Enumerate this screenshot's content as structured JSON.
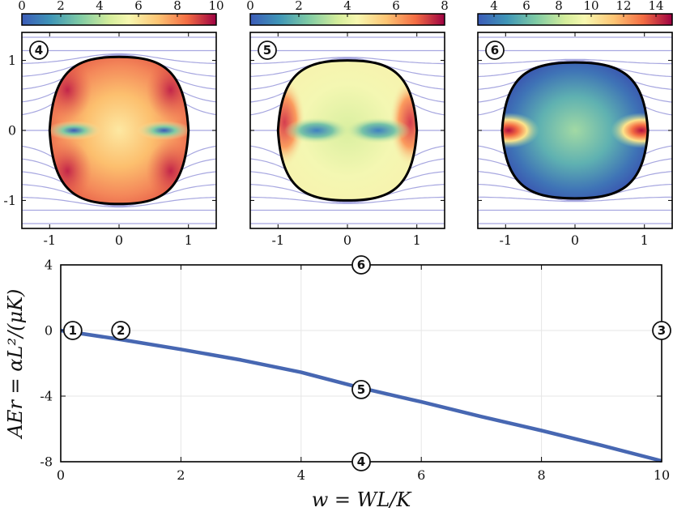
{
  "chart_data": [
    {
      "type": "heatmap",
      "panel": "Panel 4",
      "marker": "4",
      "colorbar": {
        "min": 0,
        "max": 10,
        "ticks": [
          "0",
          "2",
          "4",
          "6",
          "8",
          "10"
        ],
        "colormap": "Spectral_r"
      },
      "xlim": [
        -1.4,
        1.4
      ],
      "ylim": [
        -1.4,
        1.4
      ],
      "xticks": [
        "-1",
        "0",
        "1"
      ],
      "yticks": [
        "1",
        "0",
        "-1"
      ],
      "shape": {
        "half_width": 1.0,
        "top": 1.05,
        "bottom": -1.05
      },
      "field_lines": "streamlines deflected around the droplet"
    },
    {
      "type": "heatmap",
      "panel": "Panel 5",
      "marker": "5",
      "colorbar": {
        "min": 0,
        "max": 8,
        "ticks": [
          "0",
          "2",
          "4",
          "6",
          "8"
        ],
        "colormap": "Spectral_r"
      },
      "xlim": [
        -1.4,
        1.4
      ],
      "ylim": [
        -1.4,
        1.4
      ],
      "xticks": [
        "-1",
        "0",
        "1"
      ],
      "shape": {
        "half_width": 1.0,
        "top": 1.0,
        "bottom": -1.0
      },
      "field_lines": "streamlines deflected around the droplet"
    },
    {
      "type": "heatmap",
      "panel": "Panel 6",
      "marker": "6",
      "colorbar": {
        "min": 3,
        "max": 15,
        "ticks": [
          "4",
          "6",
          "8",
          "10",
          "12",
          "14"
        ],
        "colormap": "Spectral_r"
      },
      "xlim": [
        -1.4,
        1.4
      ],
      "ylim": [
        -1.4,
        1.4
      ],
      "xticks": [
        "-1",
        "0",
        "1"
      ],
      "shape": {
        "half_width": 1.05,
        "top": 0.97,
        "bottom": -0.97
      },
      "field_lines": "streamlines deflected around the droplet"
    },
    {
      "type": "line",
      "title": "",
      "xlabel": "w = WL/K",
      "ylabel": "AEr = αL²/(μK)",
      "xlim": [
        0,
        10
      ],
      "ylim": [
        -8,
        4
      ],
      "xticks": [
        "0",
        "2",
        "4",
        "6",
        "8",
        "10"
      ],
      "yticks": [
        "4",
        "0",
        "-4",
        "-8"
      ],
      "grid": true,
      "series": [
        {
          "name": "AEr",
          "x": [
            0,
            1,
            2,
            3,
            4,
            5,
            6,
            7,
            8,
            9,
            10
          ],
          "y": [
            0,
            -0.55,
            -1.15,
            -1.8,
            -2.55,
            -3.5,
            -4.35,
            -5.25,
            -6.1,
            -7.0,
            -7.95
          ]
        }
      ],
      "markers": [
        {
          "label": "1",
          "x": 0.2,
          "y": 0
        },
        {
          "label": "2",
          "x": 1.0,
          "y": 0
        },
        {
          "label": "3",
          "x": 10.0,
          "y": 0
        },
        {
          "label": "4",
          "x": 5.0,
          "y": -8
        },
        {
          "label": "5",
          "x": 5.0,
          "y": -3.6
        },
        {
          "label": "6",
          "x": 5.0,
          "y": 4
        }
      ]
    }
  ]
}
